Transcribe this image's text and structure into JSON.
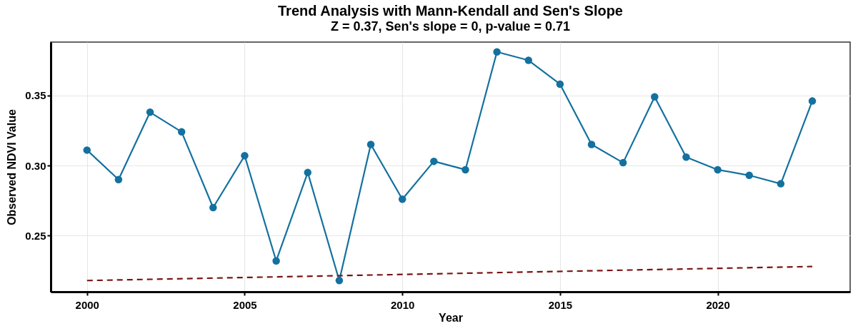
{
  "chart_data": {
    "type": "line",
    "title": "Trend Analysis with Mann-Kendall and Sen's Slope",
    "subtitle": "Z = 0.37, Sen's slope = 0, p-value = 0.71",
    "xlabel": "Year",
    "ylabel": "Observed NDVI Value",
    "x": [
      2000,
      2001,
      2002,
      2003,
      2004,
      2005,
      2006,
      2007,
      2008,
      2009,
      2010,
      2011,
      2012,
      2013,
      2014,
      2015,
      2016,
      2017,
      2018,
      2019,
      2020,
      2021,
      2022,
      2023
    ],
    "series": [
      {
        "color": "#13719f",
        "marker": "circle",
        "line_style": "solid",
        "values": [
          0.311,
          0.29,
          0.338,
          0.324,
          0.27,
          0.307,
          0.232,
          0.295,
          0.218,
          0.315,
          0.276,
          0.303,
          0.297,
          0.381,
          0.375,
          0.358,
          0.315,
          0.302,
          0.349,
          0.306,
          0.297,
          0.293,
          0.287,
          0.346
        ]
      },
      {
        "type": "line",
        "color": "#7b1414",
        "marker": "none",
        "line_style": "dashed",
        "x": [
          2000,
          2023
        ],
        "values": [
          0.218,
          0.228
        ]
      }
    ],
    "xlim": [
      1998.85,
      2024.2
    ],
    "xticks": [
      2000,
      2005,
      2010,
      2015,
      2020
    ],
    "ylim": [
      0.21,
      0.388
    ],
    "yticks": [
      0.25,
      {
        "value": 0.3,
        "label": "0.30"
      },
      0.35
    ],
    "grid": true
  }
}
